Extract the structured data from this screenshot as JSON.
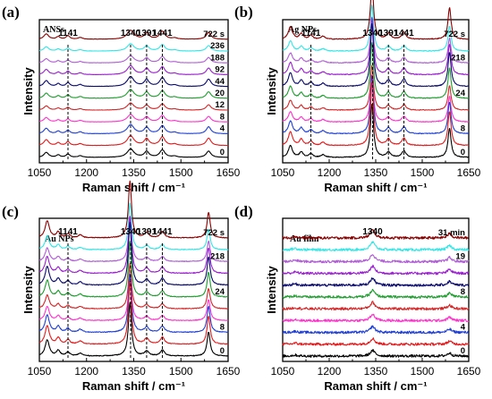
{
  "colors": [
    "#000000",
    "#e41a1c",
    "#1f3fd6",
    "#ff33cc",
    "#d62728",
    "#1f9e2f",
    "#0a0a6e",
    "#9a1fd0",
    "#b05dd6",
    "#33e6e6",
    "#8b0000"
  ],
  "chart_data": [
    {
      "id": "a",
      "type": "line",
      "panel_label": "(a)",
      "inner_label": "ANSs",
      "xlabel": "Raman shift / cm⁻¹",
      "ylabel": "Intensity",
      "xlim": [
        1050,
        1650
      ],
      "xticks": [
        "1050",
        "1200",
        "1350",
        "1500",
        "1650"
      ],
      "peak_labels": [
        "1141",
        "1340",
        "1391",
        "1441"
      ],
      "peak_positions": [
        1141,
        1340,
        1391,
        1441
      ],
      "dashed_markers": [
        1141,
        1340,
        1391,
        1441
      ],
      "time_labels": [
        "722 s",
        "236",
        "188",
        "92",
        "44",
        "20",
        "12",
        "8",
        "4",
        "0"
      ],
      "series_count": 11,
      "peaks": [
        {
          "x": 1072,
          "w": 9,
          "h": 0.3
        },
        {
          "x": 1110,
          "w": 7,
          "h": 0.14
        },
        {
          "x": 1141,
          "w": 7,
          "h": 0.2
        },
        {
          "x": 1180,
          "w": 8,
          "h": 0.1
        },
        {
          "x": 1340,
          "w": 13,
          "h": 0.5
        },
        {
          "x": 1391,
          "w": 9,
          "h": 0.34
        },
        {
          "x": 1441,
          "w": 10,
          "h": 0.44
        },
        {
          "x": 1480,
          "w": 9,
          "h": 0.07
        },
        {
          "x": 1588,
          "w": 9,
          "h": 0.38
        }
      ]
    },
    {
      "id": "b",
      "type": "line",
      "panel_label": "(b)",
      "inner_label": "Ag NPs",
      "xlabel": "Raman shift / cm⁻¹",
      "ylabel": "Intensity",
      "xlim": [
        1050,
        1650
      ],
      "xticks": [
        "1050",
        "1200",
        "1350",
        "1500",
        "1650"
      ],
      "peak_labels": [
        "1141",
        "1340",
        "1391",
        "1441"
      ],
      "peak_positions": [
        1141,
        1340,
        1391,
        1441
      ],
      "dashed_markers": [
        1141,
        1340,
        1391,
        1441
      ],
      "time_labels": [
        "722 s",
        "218",
        "24",
        "8",
        "0"
      ],
      "series_count": 11,
      "peaks": [
        {
          "x": 1075,
          "w": 8,
          "h": 0.22
        },
        {
          "x": 1110,
          "w": 7,
          "h": 0.1
        },
        {
          "x": 1141,
          "w": 7,
          "h": 0.07
        },
        {
          "x": 1180,
          "w": 8,
          "h": 0.05
        },
        {
          "x": 1338,
          "w": 6,
          "h": 1.0
        },
        {
          "x": 1391,
          "w": 8,
          "h": 0.1
        },
        {
          "x": 1441,
          "w": 8,
          "h": 0.12
        },
        {
          "x": 1588,
          "w": 6,
          "h": 0.55
        }
      ]
    },
    {
      "id": "c",
      "type": "line",
      "panel_label": "(c)",
      "inner_label": "Au NPs",
      "xlabel": "Raman shift / cm⁻¹",
      "ylabel": "Intensity",
      "xlim": [
        1050,
        1650
      ],
      "xticks": [
        "1050",
        "1200",
        "1350",
        "1500",
        "1650"
      ],
      "peak_labels": [
        "1141",
        "1340",
        "1391",
        "1441"
      ],
      "peak_positions": [
        1141,
        1340,
        1391,
        1441
      ],
      "dashed_markers": [
        1141,
        1340,
        1391,
        1441
      ],
      "time_labels": [
        "722 s",
        "218",
        "24",
        "8",
        "0"
      ],
      "series_count": 11,
      "peaks": [
        {
          "x": 1075,
          "w": 8,
          "h": 0.3
        },
        {
          "x": 1110,
          "w": 7,
          "h": 0.1
        },
        {
          "x": 1141,
          "w": 7,
          "h": 0.07
        },
        {
          "x": 1180,
          "w": 8,
          "h": 0.05
        },
        {
          "x": 1338,
          "w": 6,
          "h": 1.0
        },
        {
          "x": 1391,
          "w": 8,
          "h": 0.09
        },
        {
          "x": 1441,
          "w": 8,
          "h": 0.11
        },
        {
          "x": 1588,
          "w": 6,
          "h": 0.45
        }
      ]
    },
    {
      "id": "d",
      "type": "line",
      "panel_label": "(d)",
      "inner_label": "Au film",
      "xlabel": "Raman shift / cm⁻¹",
      "ylabel": "Intensity",
      "xlim": [
        1050,
        1650
      ],
      "xticks": [
        "1050",
        "1200",
        "1350",
        "1500",
        "1650"
      ],
      "peak_labels": [
        "1340"
      ],
      "peak_positions": [
        1340
      ],
      "dashed_markers": [],
      "time_labels": [
        "31 min",
        "19",
        "8",
        "4",
        "0"
      ],
      "series_count": 11,
      "noise": 0.035,
      "peaks": [
        {
          "x": 1340,
          "w": 9,
          "h": 0.22
        },
        {
          "x": 1588,
          "w": 8,
          "h": 0.12
        },
        {
          "x": 1090,
          "w": 10,
          "h": 0.04
        }
      ]
    }
  ]
}
